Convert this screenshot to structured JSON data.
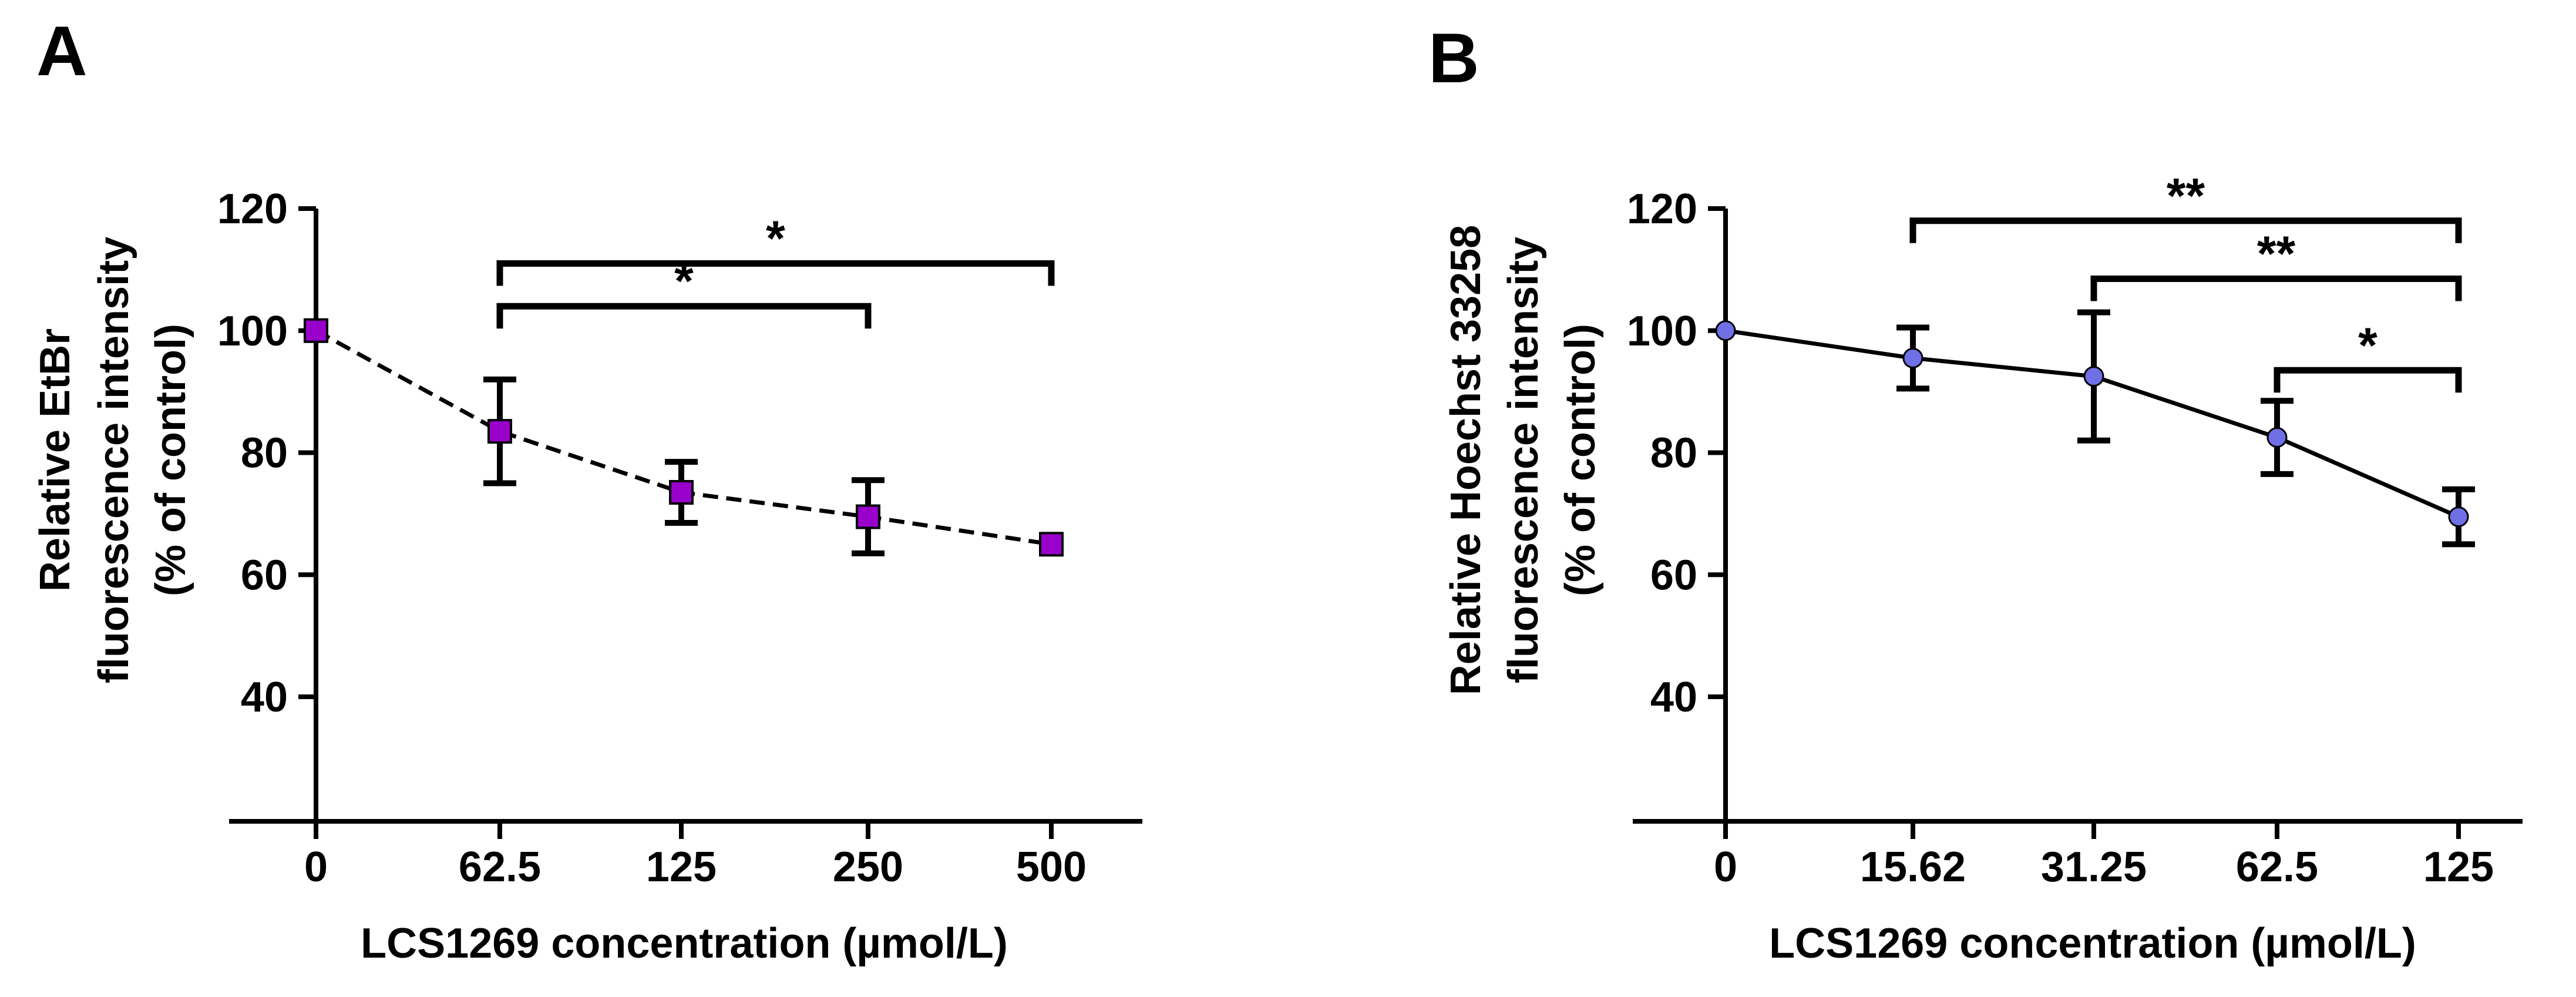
{
  "chart_data": [
    {
      "panel": "A",
      "type": "line",
      "line_style": "dashed",
      "marker": "square",
      "marker_color": "#9900cc",
      "categories": [
        "0",
        "62.5",
        "125",
        "250",
        "500"
      ],
      "series": [
        {
          "name": "",
          "values": [
            100,
            83.5,
            73.5,
            69.5,
            65
          ],
          "errors": [
            0,
            8.5,
            5,
            6,
            null
          ]
        }
      ],
      "xlabel": "LCS1269 concentration (µmol/L)",
      "ylabel": [
        "Relative EtBr",
        "fluorescence intensity",
        "(% of control)"
      ],
      "y_ticks": [
        "40",
        "60",
        "80",
        "100",
        "120"
      ],
      "ylim": [
        25,
        120
      ],
      "grid": false,
      "significance": [
        {
          "from": "62.5",
          "to": "250",
          "label": "*",
          "level": 104
        },
        {
          "from": "62.5",
          "to": "500",
          "label": "*",
          "level": 111
        }
      ]
    },
    {
      "panel": "B",
      "type": "line",
      "line_style": "solid",
      "marker": "circle",
      "marker_color": "#6f6fe6",
      "categories": [
        "0",
        "15.62",
        "31.25",
        "62.5",
        "125"
      ],
      "series": [
        {
          "name": "",
          "values": [
            100,
            95.5,
            92.5,
            82.5,
            69.5
          ],
          "errors": [
            0,
            5,
            10.5,
            6,
            4.5
          ]
        }
      ],
      "xlabel": "LCS1269 concentration (µmol/L)",
      "ylabel": [
        "Relative Hoechst 33258",
        "fluorescence intensity",
        "(% of control)"
      ],
      "y_ticks": [
        "40",
        "60",
        "80",
        "100",
        "120"
      ],
      "ylim": [
        25,
        120
      ],
      "grid": false,
      "significance": [
        {
          "from": "15.62",
          "to": "125",
          "label": "**",
          "level": 118
        },
        {
          "from": "31.25",
          "to": "125",
          "label": "**",
          "level": 108.5
        },
        {
          "from": "62.5",
          "to": "125",
          "label": "*",
          "level": 93.5
        }
      ]
    }
  ]
}
